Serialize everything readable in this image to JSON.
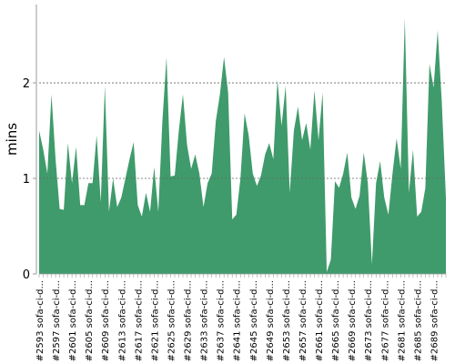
{
  "chart_data": {
    "type": "area",
    "y_label": "mins",
    "color": "#3f9b6b",
    "categories": [
      "#2593 sofa-ci-d...",
      null,
      null,
      null,
      "#2597 sofa-ci-d...",
      null,
      null,
      null,
      "#2601 sofa-ci-d...",
      null,
      null,
      null,
      "#2605 sofa-ci-d...",
      null,
      null,
      null,
      "#2609 sofa-ci-d...",
      null,
      null,
      null,
      "#2613 sofa-ci-d...",
      null,
      null,
      null,
      "#2617 sofa-ci-d...",
      null,
      null,
      null,
      "#2621 sofa-ci-d...",
      null,
      null,
      null,
      "#2625 sofa-ci-d...",
      null,
      null,
      null,
      "#2629 sofa-ci-d...",
      null,
      null,
      null,
      "#2633 sofa-ci-d...",
      null,
      null,
      null,
      "#2637 sofa-ci-d...",
      null,
      null,
      null,
      "#2641 sofa-ci-d...",
      null,
      null,
      null,
      "#2645 sofa-ci-d...",
      null,
      null,
      null,
      "#2649 sofa-ci-d...",
      null,
      null,
      null,
      "#2653 sofa-ci-d...",
      null,
      null,
      null,
      "#2657 sofa-ci-d...",
      null,
      null,
      null,
      "#2661 sofa-ci-d...",
      null,
      null,
      null,
      "#2665 sofa-ci-d...",
      null,
      null,
      null,
      "#2669 sofa-ci-d...",
      null,
      null,
      null,
      "#2673 sofa-ci-d...",
      null,
      null,
      null,
      "#2677 sofa-ci-d...",
      null,
      null,
      null,
      "#2681 sofa-ci-d...",
      null,
      null,
      null,
      "#2685 sofa-ci-d...",
      null,
      null,
      null,
      "#2689 sofa-ci-d...",
      null,
      null,
      null
    ],
    "values": [
      1.5,
      1.3,
      1.05,
      1.88,
      1.2,
      0.68,
      0.67,
      1.37,
      0.95,
      1.33,
      0.72,
      0.72,
      0.95,
      0.95,
      1.45,
      0.75,
      1.97,
      0.65,
      1.0,
      0.7,
      0.8,
      1.0,
      1.2,
      1.38,
      0.72,
      0.6,
      0.85,
      0.65,
      1.12,
      0.65,
      1.6,
      2.27,
      1.02,
      1.03,
      1.5,
      1.88,
      1.35,
      1.1,
      1.25,
      1.05,
      0.7,
      0.95,
      1.05,
      1.6,
      1.88,
      2.27,
      1.9,
      0.57,
      0.62,
      1.0,
      1.68,
      1.45,
      1.05,
      0.92,
      1.03,
      1.25,
      1.37,
      1.2,
      2.03,
      1.55,
      1.97,
      0.85,
      1.5,
      1.75,
      1.4,
      1.58,
      1.3,
      1.92,
      1.4,
      1.9,
      0.02,
      0.15,
      0.97,
      0.9,
      1.05,
      1.27,
      0.8,
      0.68,
      0.82,
      1.27,
      0.95,
      0.1,
      0.95,
      1.18,
      0.8,
      0.62,
      1.05,
      1.42,
      1.1,
      2.68,
      0.85,
      1.3,
      0.6,
      0.65,
      0.9,
      2.2,
      1.95,
      2.55,
      1.8,
      0.8
    ],
    "ylim": [
      0,
      2.82
    ],
    "yticks": [
      0,
      1,
      2
    ],
    "grid": true
  }
}
